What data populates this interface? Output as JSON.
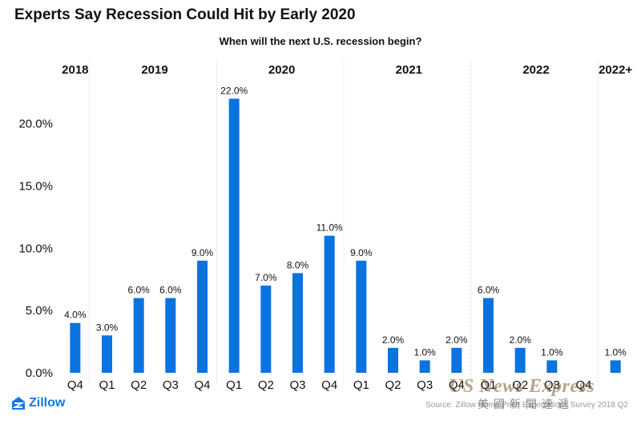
{
  "header": {
    "title": "Experts Say Recession Could Hit by Early 2020"
  },
  "chart_data": {
    "type": "bar",
    "subtitle": "When will the next U.S. recession begin?",
    "year_groups": [
      {
        "label": "2018",
        "count": 1
      },
      {
        "label": "2019",
        "count": 4
      },
      {
        "label": "2020",
        "count": 4
      },
      {
        "label": "2021",
        "count": 4
      },
      {
        "label": "2022",
        "count": 4
      },
      {
        "label": "2022+",
        "count": 1
      }
    ],
    "categories": [
      "Q4",
      "Q1",
      "Q2",
      "Q3",
      "Q4",
      "Q1",
      "Q2",
      "Q3",
      "Q4",
      "Q1",
      "Q2",
      "Q3",
      "Q4",
      "Q1",
      "Q2",
      "Q3",
      "Q4",
      ""
    ],
    "values": [
      4,
      3,
      6,
      6,
      9,
      22,
      7,
      8,
      11,
      9,
      2,
      1,
      2,
      6,
      2,
      1,
      null,
      1
    ],
    "value_labels": [
      "4.0%",
      "3.0%",
      "6.0%",
      "6.0%",
      "9.0%",
      "22.0%",
      "7.0%",
      "8.0%",
      "11.0%",
      "9.0%",
      "2.0%",
      "1.0%",
      "2.0%",
      "6.0%",
      "2.0%",
      "1.0%",
      "",
      "1.0%"
    ],
    "y_ticks": [
      0,
      5,
      10,
      15,
      20
    ],
    "y_tick_labels": [
      "0.0%",
      "5.0%",
      "10.0%",
      "15.0%",
      "20.0%"
    ],
    "ylim": [
      0,
      23.5
    ],
    "bar_color": "#0a73e0",
    "xlabel": "",
    "ylabel": ""
  },
  "footer": {
    "logo_text": "Zillow",
    "source": "Source: Zillow Home Price Expectations Survey 2018 Q2",
    "watermark_line1": "US News Express",
    "watermark_line2": "美國新聞速遞"
  }
}
